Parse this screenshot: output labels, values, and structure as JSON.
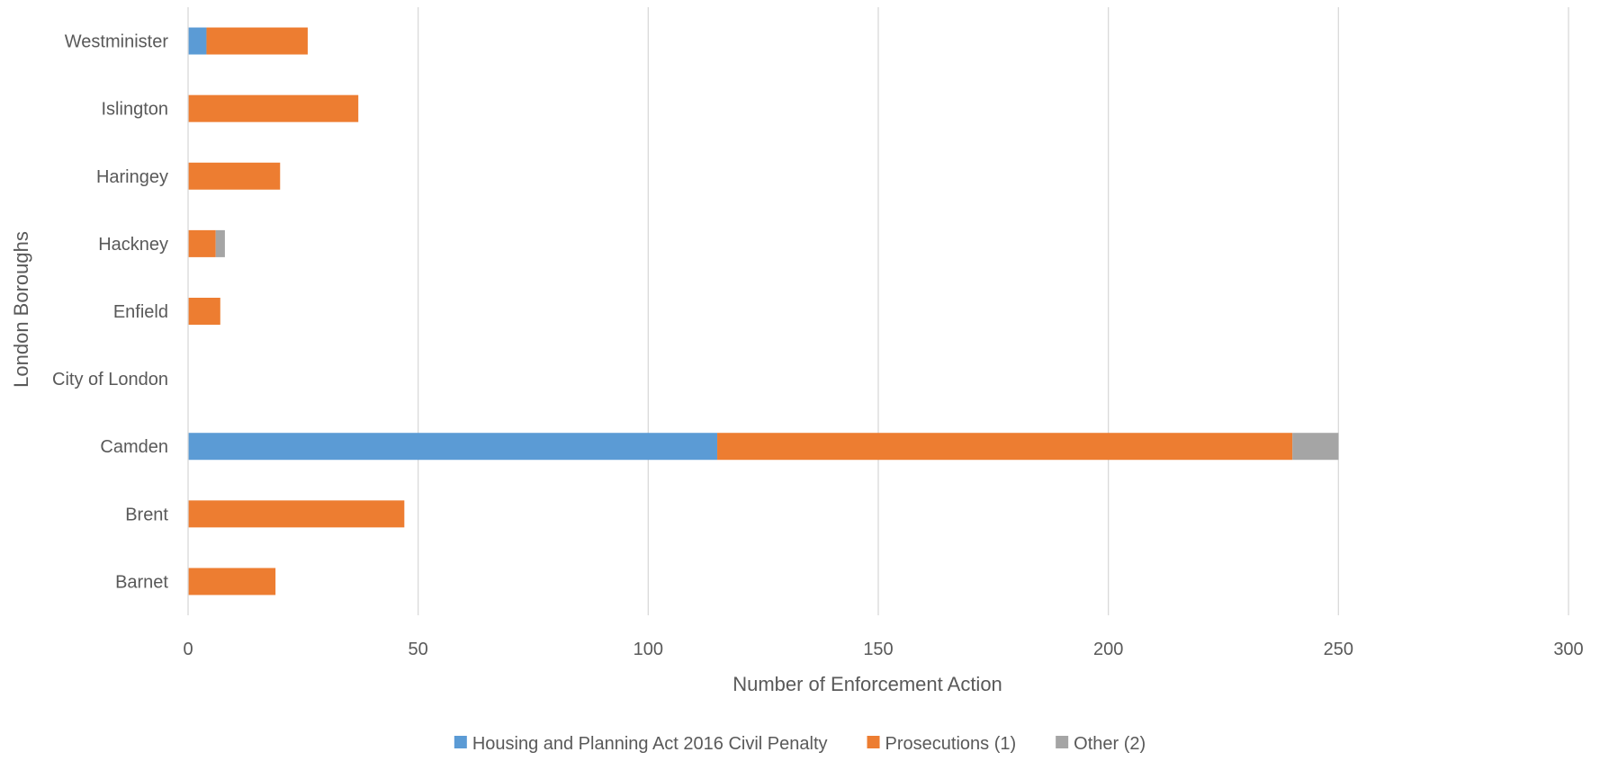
{
  "chart_data": {
    "type": "bar",
    "orientation": "horizontal",
    "stacked": true,
    "title": "",
    "xlabel": "Number of Enforcement Action",
    "ylabel": "London Boroughs",
    "xlim": [
      0,
      300
    ],
    "xticks": [
      0,
      50,
      100,
      150,
      200,
      250,
      300
    ],
    "grid": true,
    "legend_position": "bottom",
    "categories": [
      "Westminister",
      "Islington",
      "Haringey",
      "Hackney",
      "Enfield",
      "City of London",
      "Camden",
      "Brent",
      "Barnet"
    ],
    "series": [
      {
        "name": "Housing and Planning Act 2016 Civil Penalty",
        "color": "#5B9BD5",
        "values": [
          4,
          0,
          0,
          0,
          0,
          0,
          115,
          0,
          0
        ]
      },
      {
        "name": "Prosecutions (1)",
        "color": "#ED7D31",
        "values": [
          22,
          37,
          20,
          6,
          7,
          0,
          125,
          47,
          19
        ]
      },
      {
        "name": "Other (2)",
        "color": "#A5A5A5",
        "values": [
          0,
          0,
          0,
          2,
          0,
          0,
          10,
          0,
          0
        ]
      }
    ]
  }
}
